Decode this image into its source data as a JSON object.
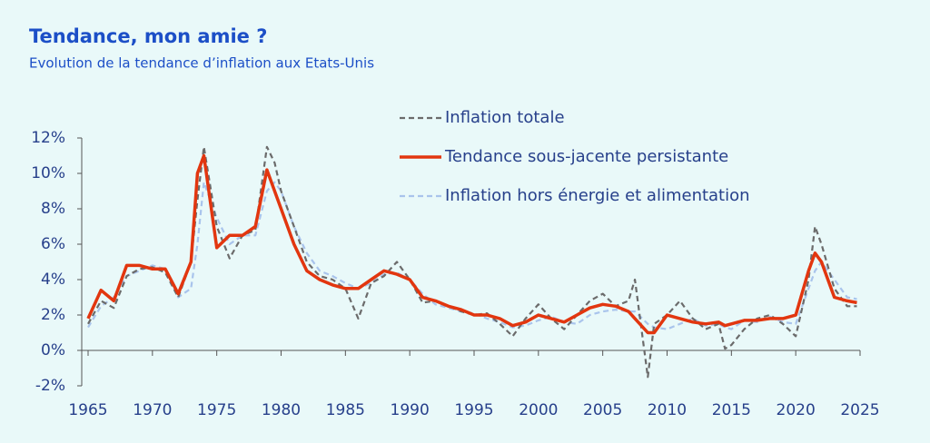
{
  "chart_data": {
    "type": "line",
    "title": "Tendance, mon amie ?",
    "subtitle": "Evolution de la tendance d’inflation aux Etats-Unis",
    "x": [
      1965,
      1966,
      1967,
      1968,
      1969,
      1970,
      1971,
      1972,
      1973,
      1973.5,
      1974,
      1975,
      1976,
      1977,
      1978,
      1978.9,
      1979.5,
      1980,
      1981,
      1982,
      1983,
      1984,
      1985,
      1986,
      1987,
      1988,
      1989,
      1990,
      1991,
      1992,
      1993,
      1994,
      1995,
      1996,
      1997,
      1998,
      1999,
      2000,
      2001,
      2002,
      2003,
      2004,
      2005,
      2006,
      2007,
      2007.5,
      2008.5,
      2009,
      2010,
      2011,
      2012,
      2013,
      2014,
      2014.5,
      2015,
      2016,
      2017,
      2018,
      2019,
      2020,
      2021,
      2021.5,
      2022,
      2023,
      2024,
      2024.75
    ],
    "series": [
      {
        "name": "Inflation totale",
        "color": "#6b6b6b",
        "dash": "dashed",
        "values": [
          1.5,
          2.8,
          2.4,
          4.2,
          4.6,
          4.7,
          4.4,
          3.0,
          5.0,
          8.5,
          11.5,
          7.0,
          5.2,
          6.5,
          6.8,
          11.5,
          10.6,
          9.0,
          7.0,
          5.0,
          4.2,
          4.0,
          3.5,
          1.8,
          3.8,
          4.2,
          5.0,
          4.0,
          2.7,
          2.8,
          2.5,
          2.2,
          2.0,
          2.1,
          1.5,
          0.8,
          1.8,
          2.6,
          1.8,
          1.2,
          2.0,
          2.8,
          3.2,
          2.5,
          2.8,
          4.0,
          -1.5,
          1.5,
          2.0,
          2.8,
          1.8,
          1.2,
          1.5,
          0.1,
          0.3,
          1.2,
          1.8,
          2.0,
          1.5,
          0.8,
          4.0,
          7.0,
          6.0,
          3.5,
          2.5,
          2.5
        ]
      },
      {
        "name": "Tendance sous-jacente persistante",
        "color": "#e2360f",
        "dash": "solid",
        "values": [
          1.8,
          3.4,
          2.8,
          4.8,
          4.8,
          4.6,
          4.6,
          3.2,
          5.0,
          10.0,
          11.0,
          5.8,
          6.5,
          6.5,
          7.0,
          10.2,
          9.0,
          8.0,
          6.0,
          4.5,
          4.0,
          3.7,
          3.5,
          3.5,
          4.0,
          4.5,
          4.3,
          4.0,
          3.0,
          2.8,
          2.5,
          2.3,
          2.0,
          2.0,
          1.8,
          1.4,
          1.6,
          2.0,
          1.8,
          1.6,
          2.0,
          2.4,
          2.6,
          2.5,
          2.2,
          1.8,
          1.0,
          1.0,
          2.0,
          1.8,
          1.6,
          1.5,
          1.6,
          1.4,
          1.5,
          1.7,
          1.7,
          1.8,
          1.8,
          2.0,
          4.5,
          5.5,
          5.0,
          3.0,
          2.8,
          2.7
        ]
      },
      {
        "name": "Inflation hors énergie et alimentation",
        "color": "#a9c4ec",
        "dash": "dashed",
        "values": [
          1.3,
          2.5,
          3.0,
          4.2,
          4.5,
          4.8,
          4.6,
          3.0,
          3.5,
          6.0,
          9.5,
          7.5,
          6.0,
          6.5,
          6.5,
          9.0,
          9.5,
          9.0,
          7.0,
          5.5,
          4.5,
          4.2,
          3.8,
          3.5,
          3.8,
          4.3,
          4.4,
          4.0,
          3.2,
          2.6,
          2.4,
          2.2,
          2.1,
          1.8,
          1.6,
          1.3,
          1.4,
          1.7,
          1.9,
          1.6,
          1.5,
          2.0,
          2.2,
          2.3,
          2.2,
          2.2,
          1.5,
          1.3,
          1.2,
          1.5,
          1.8,
          1.4,
          1.5,
          1.3,
          1.2,
          1.7,
          1.6,
          1.9,
          1.6,
          1.5,
          3.5,
          4.5,
          5.0,
          4.0,
          3.0,
          2.9
        ]
      }
    ],
    "xlim": [
      1965,
      2025
    ],
    "xticks": [
      1965,
      1970,
      1975,
      1980,
      1985,
      1990,
      1995,
      2000,
      2005,
      2010,
      2015,
      2020,
      2025
    ],
    "ylim": [
      -2,
      12
    ],
    "yticks": [
      {
        "value": -2,
        "label": "-2%"
      },
      {
        "value": 0,
        "label": "0%"
      },
      {
        "value": 2,
        "label": "2%"
      },
      {
        "value": 4,
        "label": "4%"
      },
      {
        "value": 6,
        "label": "6%"
      },
      {
        "value": 8,
        "label": "8%"
      },
      {
        "value": 10,
        "label": "10%"
      },
      {
        "value": 12,
        "label": "12%"
      }
    ],
    "legend": "top-right"
  }
}
